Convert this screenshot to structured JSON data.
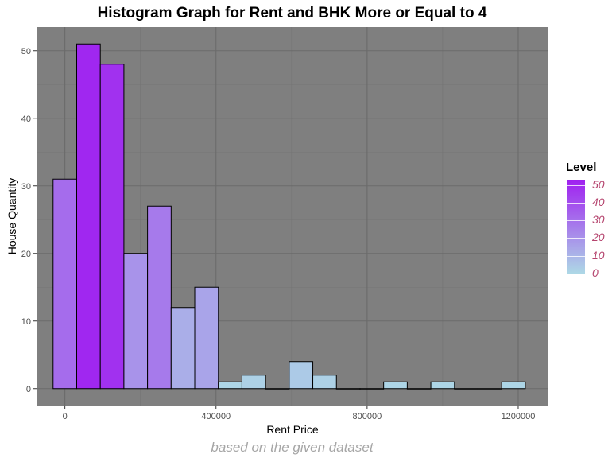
{
  "chart_data": {
    "type": "bar",
    "title": "Histogram Graph for Rent and BHK More or Equal to 4",
    "xlabel": "Rent Price",
    "ylabel": "House Quantity",
    "caption": "based on the given dataset",
    "xlim": [
      -75000,
      1280000
    ],
    "ylim": [
      -2.5,
      53.5
    ],
    "x_ticks": [
      0,
      400000,
      800000,
      1200000
    ],
    "x_tick_labels": [
      "0",
      "400000",
      "800000",
      "1200000"
    ],
    "y_ticks": [
      0,
      10,
      20,
      30,
      40,
      50
    ],
    "y_tick_labels": [
      "0",
      "10",
      "20",
      "30",
      "40",
      "50"
    ],
    "bin_width": 62500,
    "bin_centers": [
      0,
      62500,
      125000,
      187500,
      250000,
      312500,
      375000,
      437500,
      500000,
      562500,
      625000,
      687500,
      750000,
      812500,
      875000,
      937500,
      1000000,
      1062500,
      1125000,
      1187500
    ],
    "values": [
      31,
      51,
      48,
      20,
      27,
      12,
      15,
      1,
      2,
      0,
      4,
      2,
      0,
      0,
      1,
      0,
      1,
      0,
      0,
      1
    ],
    "grid": true,
    "legend": {
      "title": "Level",
      "position": "right",
      "fill_scale": "continuous",
      "low_color": "#add8e6",
      "high_color": "#a020f0",
      "limits": [
        0,
        53
      ],
      "labels": [
        {
          "value": 50,
          "text": "50"
        },
        {
          "value": 40,
          "text": "40"
        },
        {
          "value": 30,
          "text": "30"
        },
        {
          "value": 20,
          "text": "20"
        },
        {
          "value": 10,
          "text": "10"
        },
        {
          "value": 0,
          "text": "0"
        }
      ]
    },
    "colors": {
      "panel_background": "#7f7f7f",
      "grid_major": "#6b6b6b",
      "grid_minor": "#747474",
      "bar_outline": "#000000",
      "legend_label": "#b5446e",
      "caption": "#a6a6a6"
    }
  }
}
